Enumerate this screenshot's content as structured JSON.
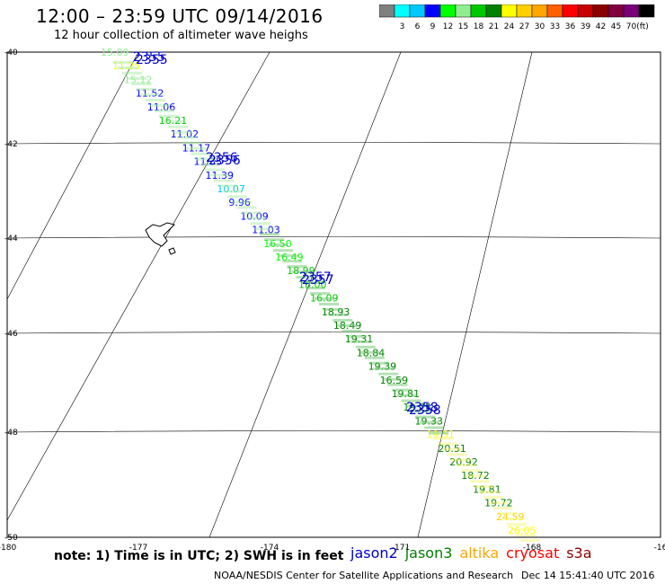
{
  "title": "12:00 – 23:59 UTC 09/14/2016",
  "subtitle": "12 hour collection of altimeter wave heighs",
  "legend": {
    "unit": "(ft)",
    "colors": [
      "#808080",
      "#00ffff",
      "#00c8ff",
      "#0000ff",
      "#00ff00",
      "#90ee90",
      "#00c800",
      "#008000",
      "#ffff00",
      "#ffd000",
      "#ffa500",
      "#ff6000",
      "#ff0000",
      "#c80000",
      "#8b0000",
      "#800040",
      "#7a007a",
      "#000000"
    ],
    "labels": [
      "3",
      "6",
      "9",
      "12",
      "15",
      "18",
      "21",
      "24",
      "27",
      "30",
      "33",
      "36",
      "39",
      "42",
      "45",
      "70"
    ]
  },
  "lat_labels": [
    "-40",
    "-42",
    "-44",
    "-46",
    "-48",
    "-50"
  ],
  "lon_labels": [
    "-180",
    "-177",
    "-174",
    "-171",
    "-168",
    "-16"
  ],
  "time_labels": [
    "2355",
    "2356",
    "2357",
    "2358"
  ],
  "swh_values": [
    "15.09",
    "11.25",
    "15.12",
    "11.52",
    "11.06",
    "16.21",
    "11.02",
    "11.17",
    "11.35",
    "11.39",
    "10.07",
    "9.96",
    "10.09",
    "11.03",
    "16.50",
    "16.49",
    "18.99",
    "16.00",
    "16.09",
    "18.93",
    "18.49",
    "19.31",
    "18.84",
    "19.39",
    "16.59",
    "19.81",
    "19.75",
    "19.33",
    "19.51",
    "20.51",
    "20.92",
    "18.72",
    "19.81",
    "19.72",
    "24.59",
    "26.05"
  ],
  "note": "note: 1) Time is in UTC; 2) SWH is in feet",
  "satellites": [
    {
      "name": "jason2",
      "color": "#0000cc"
    },
    {
      "name": "jason3",
      "color": "#008000"
    },
    {
      "name": "altika",
      "color": "#ffa500"
    },
    {
      "name": "cryosat",
      "color": "#ff0000"
    },
    {
      "name": "s3a",
      "color": "#8b0000"
    }
  ],
  "credit": "NOAA/NESDIS Center for Satellite Applications and Research",
  "timestamp": "Dec 14 15:41:40 UTC 2016"
}
